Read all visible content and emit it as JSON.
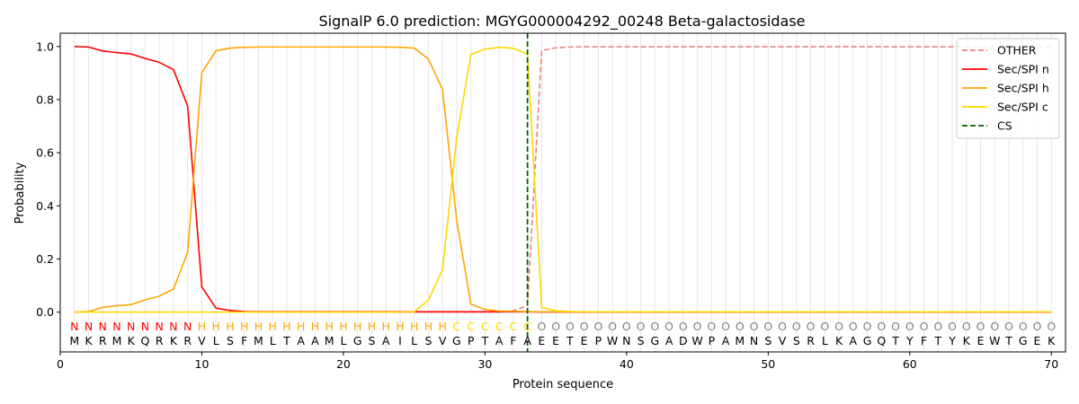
{
  "chart_data": {
    "type": "line",
    "title": "SignalP 6.0 prediction: MGYG000004292_00248 Beta-galactosidase",
    "xlabel": "Protein sequence",
    "ylabel": "Probability",
    "xlim": [
      0,
      71
    ],
    "ylim": [
      -0.15,
      1.05
    ],
    "x_ticks": [
      0,
      10,
      20,
      30,
      40,
      50,
      60,
      70
    ],
    "y_ticks": [
      0.0,
      0.2,
      0.4,
      0.6,
      0.8,
      1.0
    ],
    "x_tick_labels": [
      "0",
      "10",
      "20",
      "30",
      "40",
      "50",
      "60",
      "70"
    ],
    "y_tick_labels": [
      "0.0",
      "0.2",
      "0.4",
      "0.6",
      "0.8",
      "1.0"
    ],
    "grid": "vertical lines at each residue",
    "legend_position": "top-right",
    "sequence": [
      "M",
      "K",
      "R",
      "M",
      "K",
      "Q",
      "R",
      "K",
      "R",
      "V",
      "L",
      "S",
      "F",
      "M",
      "L",
      "T",
      "A",
      "A",
      "M",
      "L",
      "G",
      "S",
      "A",
      "I",
      "L",
      "S",
      "V",
      "G",
      "P",
      "T",
      "A",
      "F",
      "A",
      "E",
      "E",
      "T",
      "E",
      "P",
      "W",
      "N",
      "S",
      "G",
      "A",
      "D",
      "W",
      "P",
      "A",
      "M",
      "N",
      "S",
      "V",
      "S",
      "R",
      "L",
      "K",
      "A",
      "G",
      "Q",
      "T",
      "Y",
      "F",
      "T",
      "Y",
      "K",
      "E",
      "W",
      "T",
      "G",
      "E",
      "K"
    ],
    "region_labels": [
      "N",
      "N",
      "N",
      "N",
      "N",
      "N",
      "N",
      "N",
      "N",
      "H",
      "H",
      "H",
      "H",
      "H",
      "H",
      "H",
      "H",
      "H",
      "H",
      "H",
      "H",
      "H",
      "H",
      "H",
      "H",
      "H",
      "H",
      "C",
      "C",
      "C",
      "C",
      "C",
      "C",
      "O",
      "O",
      "O",
      "O",
      "O",
      "O",
      "O",
      "O",
      "O",
      "O",
      "O",
      "O",
      "O",
      "O",
      "O",
      "O",
      "O",
      "O",
      "O",
      "O",
      "O",
      "O",
      "O",
      "O",
      "O",
      "O",
      "O",
      "O",
      "O",
      "O",
      "O",
      "O",
      "O",
      "O",
      "O",
      "O",
      "O"
    ],
    "region_colors": {
      "N": "#ff0000",
      "H": "#ffa500",
      "C": "#ffd700",
      "O": "#808080"
    },
    "cleavage_site": 33,
    "series": [
      {
        "name": "OTHER",
        "color": "#f08080",
        "dashed": true,
        "values": [
          0,
          0,
          0,
          0,
          0,
          0,
          0,
          0,
          0,
          0,
          0,
          0,
          0,
          0,
          0,
          0,
          0,
          0,
          0,
          0,
          0,
          0,
          0,
          0,
          0,
          0,
          0,
          0,
          0,
          0,
          0,
          0.005,
          0.025,
          0.985,
          0.995,
          0.998,
          0.999,
          0.999,
          0.999,
          0.999,
          0.999,
          0.999,
          0.999,
          0.999,
          0.999,
          0.999,
          0.999,
          0.999,
          0.999,
          0.999,
          0.999,
          0.999,
          0.999,
          0.999,
          0.999,
          0.999,
          0.999,
          0.999,
          0.999,
          0.999,
          0.999,
          0.999,
          0.999,
          0.999,
          0.999,
          0.999,
          0.999,
          0.999,
          0.999,
          0.999
        ]
      },
      {
        "name": "Sec/SPI n",
        "color": "#ff0000",
        "dashed": false,
        "values": [
          1.0,
          0.998,
          0.983,
          0.977,
          0.972,
          0.955,
          0.94,
          0.913,
          0.775,
          0.095,
          0.015,
          0.006,
          0.002,
          0.001,
          0.001,
          0.001,
          0.001,
          0.001,
          0.001,
          0.001,
          0.001,
          0.001,
          0.001,
          0.001,
          0.001,
          0.001,
          0.001,
          0.001,
          0.001,
          0.001,
          0.001,
          0.001,
          0.001,
          0,
          0,
          0,
          0,
          0,
          0,
          0,
          0,
          0,
          0,
          0,
          0,
          0,
          0,
          0,
          0,
          0,
          0,
          0,
          0,
          0,
          0,
          0,
          0,
          0,
          0,
          0,
          0,
          0,
          0,
          0,
          0,
          0,
          0,
          0,
          0,
          0
        ]
      },
      {
        "name": "Sec/SPI h",
        "color": "#ffa500",
        "dashed": false,
        "values": [
          0.0,
          0.002,
          0.018,
          0.024,
          0.028,
          0.046,
          0.06,
          0.087,
          0.225,
          0.902,
          0.984,
          0.994,
          0.997,
          0.998,
          0.998,
          0.998,
          0.998,
          0.998,
          0.998,
          0.998,
          0.998,
          0.998,
          0.998,
          0.997,
          0.994,
          0.953,
          0.838,
          0.345,
          0.03,
          0.01,
          0.004,
          0.003,
          0.002,
          0.001,
          0.001,
          0.001,
          0.001,
          0.001,
          0.001,
          0.001,
          0.001,
          0.001,
          0.001,
          0.001,
          0.001,
          0.001,
          0.001,
          0.001,
          0.001,
          0.001,
          0.001,
          0.001,
          0.001,
          0.001,
          0.001,
          0.001,
          0.001,
          0.001,
          0.001,
          0.001,
          0.001,
          0.001,
          0.001,
          0.001,
          0.001,
          0.001,
          0.001,
          0.001,
          0.001,
          0.001
        ]
      },
      {
        "name": "Sec/SPI c",
        "color": "#ffd700",
        "dashed": false,
        "values": [
          0,
          0,
          0,
          0,
          0,
          0,
          0,
          0,
          0,
          0,
          0,
          0,
          0,
          0,
          0,
          0,
          0,
          0,
          0,
          0,
          0,
          0,
          0,
          0,
          0.001,
          0.045,
          0.16,
          0.655,
          0.97,
          0.99,
          0.997,
          0.993,
          0.972,
          0.018,
          0.005,
          0.002,
          0.001,
          0.001,
          0.001,
          0.001,
          0.001,
          0.001,
          0.001,
          0.001,
          0.001,
          0.001,
          0.001,
          0.001,
          0.001,
          0.001,
          0.001,
          0.001,
          0.001,
          0.001,
          0.001,
          0.001,
          0.001,
          0.001,
          0.001,
          0.001,
          0.001,
          0.001,
          0.001,
          0.001,
          0.001,
          0.001,
          0.001,
          0.001,
          0.001,
          0.001
        ]
      }
    ],
    "legend": [
      {
        "name": "OTHER",
        "color": "#f08080",
        "dashed": true
      },
      {
        "name": "Sec/SPI n",
        "color": "#ff0000",
        "dashed": false
      },
      {
        "name": "Sec/SPI h",
        "color": "#ffa500",
        "dashed": false
      },
      {
        "name": "Sec/SPI c",
        "color": "#ffd700",
        "dashed": false
      },
      {
        "name": "CS",
        "color": "#006400",
        "dashed": true
      }
    ]
  }
}
